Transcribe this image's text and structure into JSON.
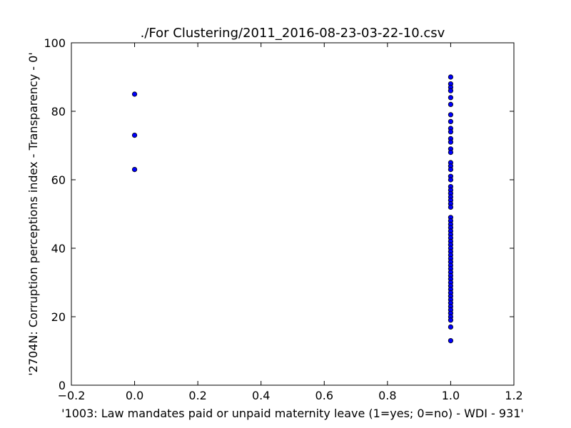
{
  "chart_data": {
    "type": "scatter",
    "title": "./For Clustering/2011_2016-08-23-03-22-10.csv",
    "xlabel": "'1003: Law mandates paid or unpaid maternity leave  (1=yes; 0=no) - WDI - 931'",
    "ylabel": "'2704N: Corruption perceptions index - Transparency - 0'",
    "xlim": [
      -0.2,
      1.2
    ],
    "ylim": [
      0,
      100
    ],
    "xticks": [
      "−0.2",
      "0.0",
      "0.2",
      "0.4",
      "0.6",
      "0.8",
      "1.0",
      "1.2"
    ],
    "xtick_values": [
      -0.2,
      0.0,
      0.2,
      0.4,
      0.6,
      0.8,
      1.0,
      1.2
    ],
    "yticks": [
      "0",
      "20",
      "40",
      "60",
      "80",
      "100"
    ],
    "ytick_values": [
      0,
      20,
      40,
      60,
      80,
      100
    ],
    "grid": false,
    "marker_color": "#0000ff",
    "marker_edge": "#000000",
    "points": [
      {
        "x": 0,
        "y": 85
      },
      {
        "x": 0,
        "y": 73
      },
      {
        "x": 0,
        "y": 63
      },
      {
        "x": 1,
        "y": 90
      },
      {
        "x": 1,
        "y": 88
      },
      {
        "x": 1,
        "y": 87
      },
      {
        "x": 1,
        "y": 86
      },
      {
        "x": 1,
        "y": 84
      },
      {
        "x": 1,
        "y": 82
      },
      {
        "x": 1,
        "y": 79
      },
      {
        "x": 1,
        "y": 77
      },
      {
        "x": 1,
        "y": 75
      },
      {
        "x": 1,
        "y": 74
      },
      {
        "x": 1,
        "y": 72
      },
      {
        "x": 1,
        "y": 71
      },
      {
        "x": 1,
        "y": 69
      },
      {
        "x": 1,
        "y": 68
      },
      {
        "x": 1,
        "y": 65
      },
      {
        "x": 1,
        "y": 64
      },
      {
        "x": 1,
        "y": 63
      },
      {
        "x": 1,
        "y": 61
      },
      {
        "x": 1,
        "y": 60
      },
      {
        "x": 1,
        "y": 58
      },
      {
        "x": 1,
        "y": 57
      },
      {
        "x": 1,
        "y": 56
      },
      {
        "x": 1,
        "y": 55
      },
      {
        "x": 1,
        "y": 54
      },
      {
        "x": 1,
        "y": 53
      },
      {
        "x": 1,
        "y": 52
      },
      {
        "x": 1,
        "y": 49
      },
      {
        "x": 1,
        "y": 48
      },
      {
        "x": 1,
        "y": 47
      },
      {
        "x": 1,
        "y": 46
      },
      {
        "x": 1,
        "y": 45
      },
      {
        "x": 1,
        "y": 44
      },
      {
        "x": 1,
        "y": 43
      },
      {
        "x": 1,
        "y": 42
      },
      {
        "x": 1,
        "y": 41
      },
      {
        "x": 1,
        "y": 40
      },
      {
        "x": 1,
        "y": 39
      },
      {
        "x": 1,
        "y": 38
      },
      {
        "x": 1,
        "y": 37
      },
      {
        "x": 1,
        "y": 36
      },
      {
        "x": 1,
        "y": 35
      },
      {
        "x": 1,
        "y": 34
      },
      {
        "x": 1,
        "y": 33
      },
      {
        "x": 1,
        "y": 32
      },
      {
        "x": 1,
        "y": 31
      },
      {
        "x": 1,
        "y": 30
      },
      {
        "x": 1,
        "y": 29
      },
      {
        "x": 1,
        "y": 28
      },
      {
        "x": 1,
        "y": 27
      },
      {
        "x": 1,
        "y": 26
      },
      {
        "x": 1,
        "y": 25
      },
      {
        "x": 1,
        "y": 24
      },
      {
        "x": 1,
        "y": 23
      },
      {
        "x": 1,
        "y": 22
      },
      {
        "x": 1,
        "y": 21
      },
      {
        "x": 1,
        "y": 20
      },
      {
        "x": 1,
        "y": 19
      },
      {
        "x": 1,
        "y": 17
      },
      {
        "x": 1,
        "y": 13
      }
    ]
  }
}
